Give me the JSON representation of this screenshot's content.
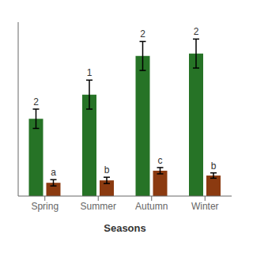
{
  "chart_data": {
    "type": "bar",
    "categories": [
      "Spring",
      "Summer",
      "Autumn",
      "Winter"
    ],
    "series": [
      {
        "color": "#267326",
        "values": [
          3.2,
          4.2,
          5.8,
          5.9
        ],
        "errors": [
          0.4,
          0.6,
          0.6,
          0.6
        ],
        "labels": [
          "2",
          "1",
          "2",
          "2"
        ]
      },
      {
        "color": "#8B3A10",
        "values": [
          0.55,
          0.65,
          1.05,
          0.85
        ],
        "errors": [
          0.13,
          0.13,
          0.13,
          0.11
        ],
        "labels": [
          "a",
          "b",
          "c",
          "b"
        ]
      }
    ],
    "xlabel": "Seasons",
    "ylim": [
      0,
      7.2
    ],
    "yticks": [
      0,
      1,
      2,
      3,
      4,
      5,
      6,
      7
    ],
    "tick_labels": "x"
  }
}
